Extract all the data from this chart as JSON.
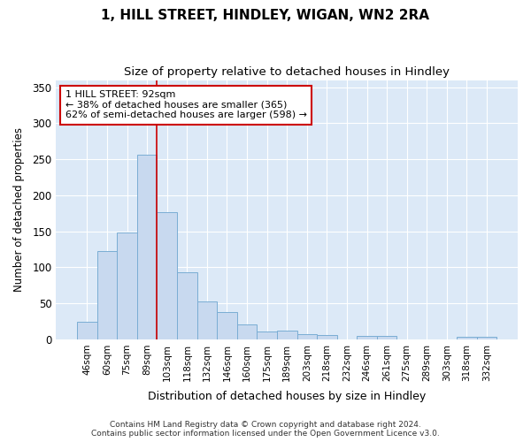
{
  "title": "1, HILL STREET, HINDLEY, WIGAN, WN2 2RA",
  "subtitle": "Size of property relative to detached houses in Hindley",
  "xlabel": "Distribution of detached houses by size in Hindley",
  "ylabel": "Number of detached properties",
  "bar_color": "#c8d9ef",
  "bar_edge_color": "#7aadd4",
  "background_color": "#dce9f7",
  "grid_color": "#ffffff",
  "fig_background": "#ffffff",
  "categories": [
    "46sqm",
    "60sqm",
    "75sqm",
    "89sqm",
    "103sqm",
    "118sqm",
    "132sqm",
    "146sqm",
    "160sqm",
    "175sqm",
    "189sqm",
    "203sqm",
    "218sqm",
    "232sqm",
    "246sqm",
    "261sqm",
    "275sqm",
    "289sqm",
    "303sqm",
    "318sqm",
    "332sqm"
  ],
  "values": [
    25,
    122,
    148,
    256,
    176,
    93,
    53,
    38,
    21,
    11,
    12,
    7,
    6,
    0,
    5,
    5,
    0,
    0,
    0,
    3,
    3
  ],
  "red_line_x": 3.5,
  "annotation_text": "1 HILL STREET: 92sqm\n← 38% of detached houses are smaller (365)\n62% of semi-detached houses are larger (598) →",
  "annotation_box_color": "#ffffff",
  "annotation_box_edge": "#cc0000",
  "red_line_color": "#cc0000",
  "footer_text": "Contains HM Land Registry data © Crown copyright and database right 2024.\nContains public sector information licensed under the Open Government Licence v3.0.",
  "ylim": [
    0,
    360
  ],
  "yticks": [
    0,
    50,
    100,
    150,
    200,
    250,
    300,
    350
  ]
}
